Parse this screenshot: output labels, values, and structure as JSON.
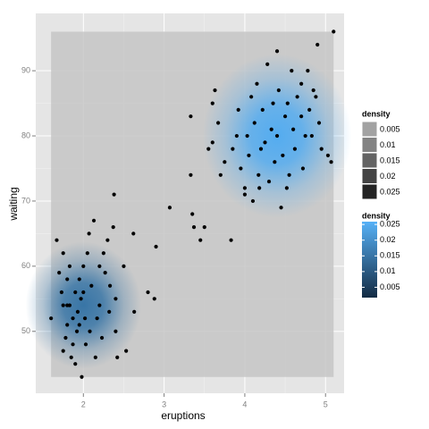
{
  "chart_data": {
    "type": "scatter",
    "x_label": "eruptions",
    "y_label": "waiting",
    "x": [
      1.6,
      1.67,
      1.7,
      1.73,
      1.75,
      1.75,
      1.75,
      1.78,
      1.8,
      1.8,
      1.8,
      1.83,
      1.83,
      1.85,
      1.87,
      1.87,
      1.9,
      1.9,
      1.92,
      1.93,
      1.95,
      1.95,
      1.97,
      1.98,
      2.0,
      2.0,
      2.02,
      2.03,
      2.05,
      2.07,
      2.08,
      2.1,
      2.13,
      2.15,
      2.17,
      2.2,
      2.2,
      2.23,
      2.25,
      2.27,
      2.3,
      2.32,
      2.33,
      2.37,
      2.38,
      2.4,
      2.4,
      2.42,
      2.5,
      2.53,
      2.62,
      2.63,
      2.8,
      2.88,
      2.9,
      3.07,
      3.33,
      3.33,
      3.37,
      3.35,
      3.45,
      3.5,
      3.55,
      3.6,
      3.6,
      3.63,
      3.67,
      3.7,
      3.75,
      3.83,
      3.85,
      3.9,
      3.92,
      3.95,
      4.0,
      4.03,
      4.05,
      4.08,
      4.1,
      4.12,
      4.15,
      4.17,
      4.2,
      4.22,
      4.25,
      4.28,
      4.3,
      4.33,
      4.35,
      4.37,
      4.4,
      4.42,
      4.45,
      4.47,
      4.5,
      4.53,
      4.55,
      4.58,
      4.6,
      4.62,
      4.65,
      4.7,
      4.7,
      4.72,
      4.75,
      4.78,
      4.8,
      4.83,
      4.85,
      4.9,
      4.92,
      4.95,
      5.03,
      5.07,
      5.1,
      4.0,
      4.18,
      4.4,
      4.52,
      4.88
    ],
    "y": [
      52,
      64,
      59,
      56,
      47,
      54,
      62,
      49,
      51,
      54,
      58,
      60,
      54,
      46,
      48,
      52,
      45,
      56,
      50,
      53,
      51,
      58,
      55,
      43,
      56,
      60,
      52,
      48,
      62,
      65,
      50,
      57,
      67,
      46,
      52,
      60,
      54,
      49,
      62,
      59,
      64,
      53,
      57,
      66,
      71,
      50,
      55,
      46,
      60,
      47,
      65,
      53,
      56,
      55,
      63,
      69,
      83,
      74,
      66,
      68,
      64,
      66,
      78,
      79,
      85,
      87,
      82,
      74,
      76,
      64,
      78,
      80,
      84,
      75,
      72,
      80,
      77,
      86,
      70,
      82,
      88,
      74,
      78,
      84,
      79,
      91,
      73,
      81,
      85,
      76,
      80,
      87,
      69,
      77,
      83,
      85,
      74,
      90,
      81,
      78,
      86,
      88,
      83,
      75,
      80,
      90,
      84,
      80,
      87,
      94,
      82,
      78,
      77,
      76,
      96,
      71,
      72,
      93,
      72,
      86
    ],
    "point_color": "#000000",
    "xlim": [
      1.41,
      5.23
    ],
    "ylim": [
      40.5,
      98.8
    ],
    "xticks": [
      2,
      3,
      4,
      5
    ],
    "yticks": [
      50,
      60,
      70,
      80,
      90
    ],
    "grid": true,
    "density": {
      "xlim": [
        1.6,
        5.1
      ],
      "ylim": [
        43,
        96
      ],
      "peaks": [
        {
          "x": 2.0,
          "y": 54,
          "value": 0.015
        },
        {
          "x": 4.4,
          "y": 80,
          "value": 0.025
        }
      ]
    },
    "legends": [
      {
        "title": "density",
        "kind": "alpha",
        "values": [
          0.005,
          0.01,
          0.015,
          0.02,
          0.025
        ]
      },
      {
        "title": "density",
        "kind": "colorbar",
        "values": [
          0.025,
          0.02,
          0.015,
          0.01,
          0.005
        ],
        "limits": [
          0.0017,
          0.0259
        ],
        "colors": [
          "#132B43",
          "#56B1F7"
        ]
      }
    ]
  }
}
